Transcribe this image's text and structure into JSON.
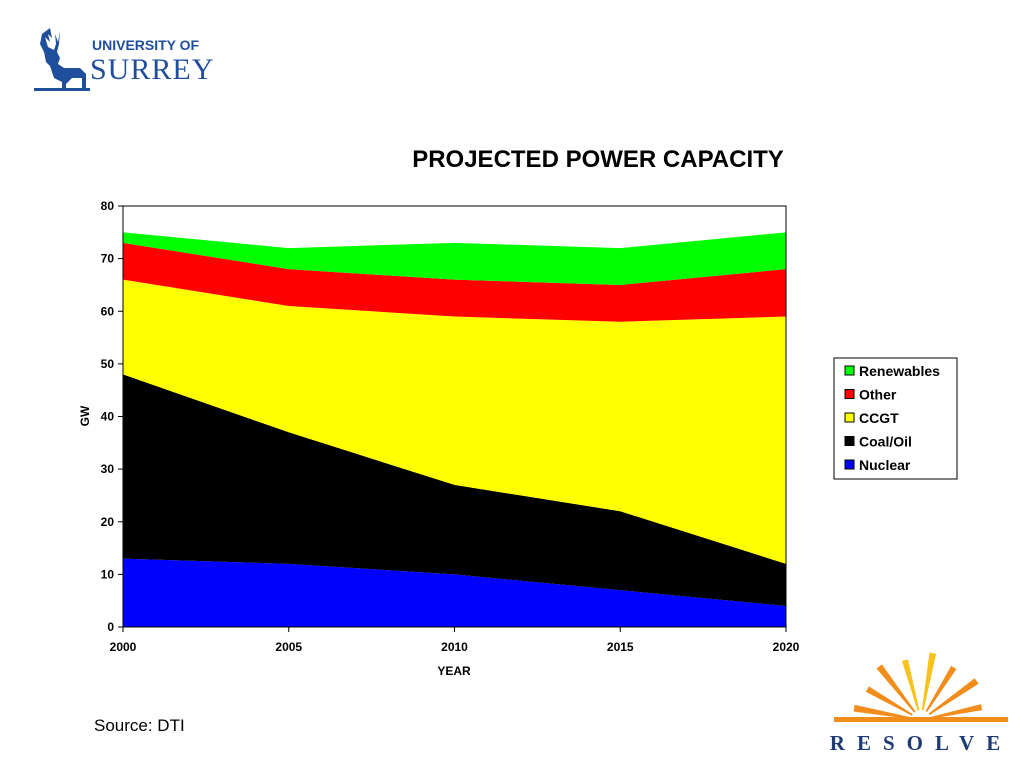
{
  "logo": {
    "line1": "UNIVERSITY OF",
    "line2": "SURREY"
  },
  "footer": {
    "source": "Source: DTI",
    "brand": "RESOLVE"
  },
  "colors": {
    "brand_blue": "#1f4e9c",
    "resolve_orange": "#f28c1a",
    "resolve_yellow": "#f7c21b"
  },
  "chart_data": {
    "type": "area",
    "stacked": true,
    "title": "PROJECTED POWER CAPACITY",
    "xlabel": "YEAR",
    "ylabel": "GW",
    "x": [
      2000,
      2005,
      2010,
      2015,
      2020
    ],
    "ylim": [
      0,
      80
    ],
    "yticks": [
      0,
      10,
      20,
      30,
      40,
      50,
      60,
      70,
      80
    ],
    "grid": false,
    "legend_position": "right",
    "series": [
      {
        "name": "Nuclear",
        "color": "#0000ff",
        "values": [
          13,
          12,
          10,
          7,
          4
        ]
      },
      {
        "name": "Coal/Oil",
        "color": "#000000",
        "values": [
          35,
          25,
          17,
          15,
          8
        ]
      },
      {
        "name": "CCGT",
        "color": "#ffff00",
        "values": [
          18,
          24,
          32,
          36,
          47
        ]
      },
      {
        "name": "Other",
        "color": "#ff0000",
        "values": [
          7,
          7,
          7,
          7,
          9
        ]
      },
      {
        "name": "Renewables",
        "color": "#00ff00",
        "values": [
          2,
          4,
          7,
          7,
          7
        ]
      }
    ]
  }
}
